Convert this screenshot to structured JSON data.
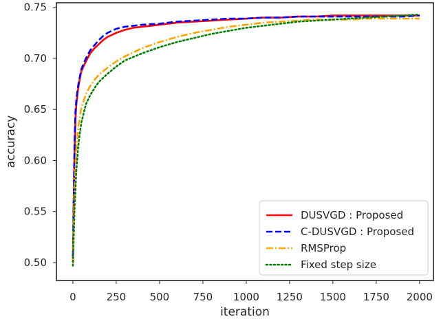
{
  "chart_data": {
    "type": "line",
    "title": "",
    "xlabel": "iteration",
    "ylabel": "accuracy",
    "xlim": [
      -95,
      2080
    ],
    "ylim": [
      0.4825,
      0.7545
    ],
    "x_ticks": [
      0,
      250,
      500,
      750,
      1000,
      1250,
      1500,
      1750,
      2000
    ],
    "x_tick_labels": [
      "0",
      "250",
      "500",
      "750",
      "1000",
      "1250",
      "1500",
      "1750",
      "2000"
    ],
    "y_ticks": [
      0.5,
      0.55,
      0.6,
      0.65,
      0.7,
      0.75
    ],
    "y_tick_labels": [
      "0.50",
      "0.55",
      "0.60",
      "0.65",
      "0.70",
      "0.75"
    ],
    "grid": false,
    "legend_position": "lower-right",
    "series": [
      {
        "name": "DUSVGD : Proposed",
        "color": "#ff0000",
        "style": "solid",
        "x": [
          0,
          5,
          10,
          15,
          20,
          30,
          40,
          50,
          75,
          100,
          125,
          150,
          175,
          200,
          250,
          300,
          350,
          400,
          500,
          600,
          700,
          800,
          900,
          1000,
          1100,
          1200,
          1300,
          1400,
          1500,
          1600,
          1700,
          1800,
          1900,
          2000
        ],
        "y": [
          0.5,
          0.56,
          0.61,
          0.64,
          0.655,
          0.67,
          0.68,
          0.688,
          0.697,
          0.705,
          0.71,
          0.714,
          0.718,
          0.721,
          0.725,
          0.728,
          0.73,
          0.731,
          0.733,
          0.735,
          0.736,
          0.737,
          0.738,
          0.739,
          0.74,
          0.74,
          0.741,
          0.741,
          0.742,
          0.742,
          0.742,
          0.742,
          0.742,
          0.742
        ]
      },
      {
        "name": "C-DUSVGD : Proposed",
        "color": "#0000ff",
        "style": "dashed",
        "x": [
          0,
          5,
          10,
          15,
          20,
          30,
          40,
          50,
          75,
          100,
          125,
          150,
          175,
          200,
          250,
          300,
          350,
          400,
          500,
          600,
          700,
          800,
          900,
          1000,
          1100,
          1200,
          1300,
          1400,
          1500,
          1600,
          1700,
          1800,
          1900,
          2000
        ],
        "y": [
          0.505,
          0.57,
          0.62,
          0.648,
          0.66,
          0.673,
          0.682,
          0.69,
          0.7,
          0.708,
          0.713,
          0.718,
          0.722,
          0.725,
          0.729,
          0.731,
          0.732,
          0.733,
          0.734,
          0.736,
          0.737,
          0.738,
          0.739,
          0.739,
          0.74,
          0.74,
          0.741,
          0.741,
          0.741,
          0.741,
          0.741,
          0.741,
          0.741,
          0.742
        ]
      },
      {
        "name": "RMSProp",
        "color": "#ffa500",
        "style": "dashdot",
        "x": [
          0,
          5,
          10,
          20,
          30,
          40,
          50,
          75,
          100,
          125,
          150,
          200,
          250,
          300,
          400,
          500,
          600,
          700,
          800,
          900,
          1000,
          1100,
          1200,
          1300,
          1400,
          1500,
          1600,
          1700,
          1800,
          1900,
          2000
        ],
        "y": [
          0.5,
          0.54,
          0.575,
          0.61,
          0.63,
          0.643,
          0.652,
          0.665,
          0.673,
          0.679,
          0.684,
          0.691,
          0.697,
          0.702,
          0.71,
          0.716,
          0.721,
          0.725,
          0.728,
          0.731,
          0.733,
          0.735,
          0.736,
          0.737,
          0.738,
          0.738,
          0.738,
          0.739,
          0.739,
          0.739,
          0.739
        ]
      },
      {
        "name": "Fixed step size",
        "color": "#008000",
        "style": "dotted",
        "x": [
          0,
          5,
          10,
          20,
          30,
          40,
          50,
          75,
          100,
          125,
          150,
          200,
          250,
          300,
          400,
          500,
          600,
          700,
          800,
          900,
          1000,
          1100,
          1200,
          1300,
          1400,
          1500,
          1600,
          1700,
          1800,
          1900,
          2000
        ],
        "y": [
          0.497,
          0.525,
          0.555,
          0.59,
          0.612,
          0.627,
          0.638,
          0.655,
          0.664,
          0.671,
          0.677,
          0.685,
          0.692,
          0.698,
          0.705,
          0.711,
          0.716,
          0.72,
          0.724,
          0.727,
          0.73,
          0.732,
          0.734,
          0.736,
          0.737,
          0.738,
          0.739,
          0.74,
          0.741,
          0.742,
          0.743
        ]
      }
    ]
  }
}
